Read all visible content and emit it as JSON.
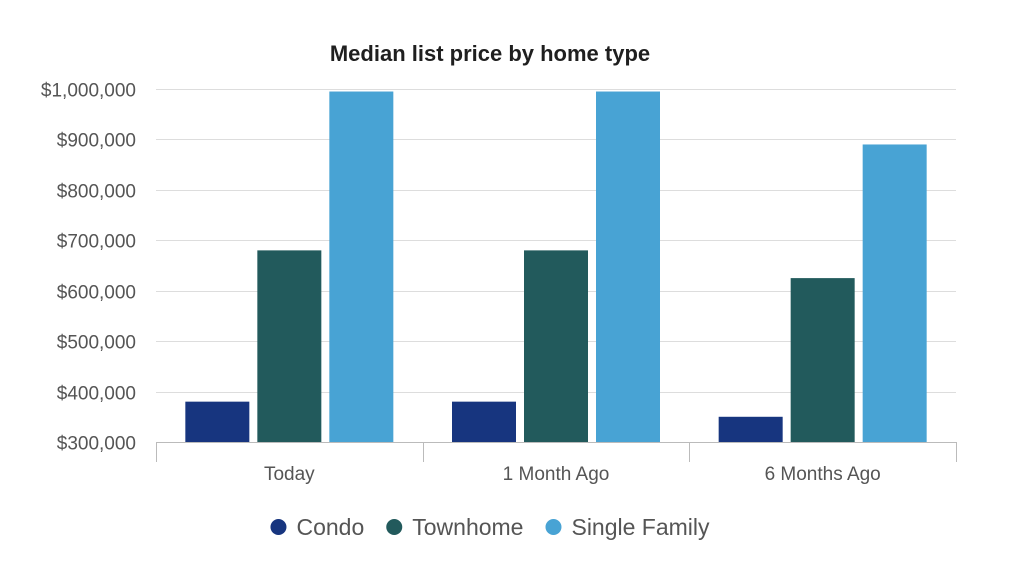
{
  "chart_data": {
    "type": "bar",
    "title": "Median list price by home type",
    "categories": [
      "Today",
      "1 Month Ago",
      "6 Months Ago"
    ],
    "series": [
      {
        "name": "Condo",
        "color": "#17357f",
        "values": [
          380000,
          380000,
          350000
        ]
      },
      {
        "name": "Townhome",
        "color": "#225a5c",
        "values": [
          680000,
          680000,
          625000
        ]
      },
      {
        "name": "Single Family",
        "color": "#48a3d4",
        "values": [
          995000,
          995000,
          890000
        ]
      }
    ],
    "ylim": [
      300000,
      1000000
    ],
    "yticks": [
      300000,
      400000,
      500000,
      600000,
      700000,
      800000,
      900000,
      1000000
    ],
    "ytick_labels": [
      "$300,000",
      "$400,000",
      "$500,000",
      "$600,000",
      "$700,000",
      "$800,000",
      "$900,000",
      "$1,000,000"
    ],
    "xlabel": "",
    "ylabel": "",
    "grid": true,
    "legend_position": "bottom"
  }
}
